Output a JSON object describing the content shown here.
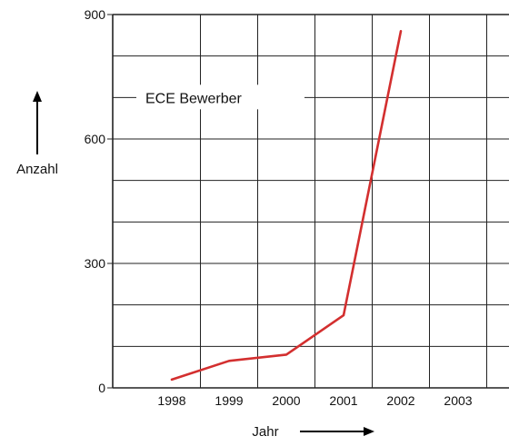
{
  "chart_data": {
    "type": "line",
    "xlabel": "Jahr",
    "ylabel": "Anzahl",
    "categories": [
      "1998",
      "1999",
      "2000",
      "2001",
      "2002",
      "2003"
    ],
    "ylim": [
      0,
      900
    ],
    "yticks": [
      0,
      300,
      600,
      900
    ],
    "grid": true,
    "legend_placement": "top-left",
    "series": [
      {
        "name": "ECE Bewerber",
        "color": "#d32f2f",
        "values": [
          20,
          65,
          80,
          175,
          860,
          null
        ]
      }
    ]
  }
}
